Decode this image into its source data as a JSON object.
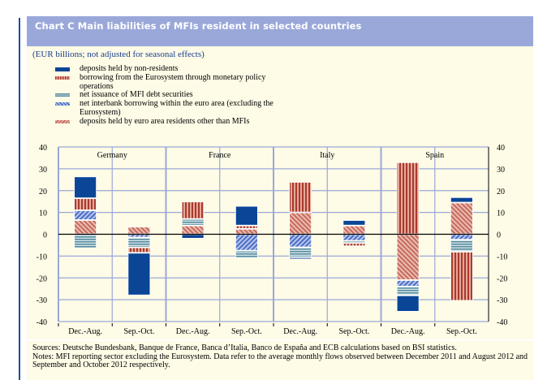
{
  "title": "Chart C Main liabilities of MFIs resident in selected countries",
  "subtitle": "(EUR billions; not adjusted for seasonal effects)",
  "legend": [
    {
      "key": "nonres",
      "label": "deposits held by non-residents",
      "color": "#0a4596"
    },
    {
      "key": "eurosys",
      "label": "borrowing from the Eurosystem through monetary policy operations",
      "color": "#a83a2e"
    },
    {
      "key": "debt",
      "label": "net issuance of MFI debt securities",
      "color": "#5a8ea0"
    },
    {
      "key": "interbank",
      "label": "net interbank borrowing within the euro area (excluding the Eurosystem)",
      "color": "#4b6dc4"
    },
    {
      "key": "ea",
      "label": "deposits held by euro area residents other than MFIs",
      "color": "#c46a5e"
    }
  ],
  "footer": {
    "sources": "Sources: Deutsche Bundesbank, Banque de France, Banca d’Italia, Banco de España and ECB calculations based on BSI statistics.",
    "notes": "Notes: MFI reporting sector excluding the Eurosystem. Data refer to the average monthly flows observed between December 2011 and August 2012 and September and October 2012 respectively."
  },
  "chart_data": {
    "type": "bar",
    "stacked": true,
    "title": "Chart C Main liabilities of MFIs resident in selected countries",
    "ylabel": "EUR billions",
    "ylim": [
      -40,
      40
    ],
    "yticks": [
      40,
      30,
      20,
      10,
      0,
      -10,
      -20,
      -30,
      -40
    ],
    "grid": true,
    "legend_position": "top-left",
    "groups": [
      "Germany",
      "France",
      "Italy",
      "Spain"
    ],
    "categories": [
      "Dec.-Aug.",
      "Sep.-Oct.",
      "Dec.-Aug.",
      "Sep.-Oct.",
      "Dec.-Aug.",
      "Sep.-Oct.",
      "Dec.-Aug.",
      "Sep.-Oct."
    ],
    "series": [
      {
        "key": "ea",
        "name": "deposits held by euro area residents other than MFIs",
        "values": [
          6.5,
          3.5,
          4.0,
          2.5,
          10.0,
          4.0,
          -21.0,
          14.5
        ]
      },
      {
        "key": "interbank",
        "name": "net interbank borrowing within the euro area (excluding the Eurosystem)",
        "values": [
          4.5,
          -1.5,
          0.0,
          -7.5,
          -6.0,
          -3.0,
          -3.0,
          -2.5
        ]
      },
      {
        "key": "debt",
        "name": "net issuance of MFI debt securities",
        "values": [
          -6.5,
          -4.5,
          3.0,
          -3.5,
          -4.5,
          -1.0,
          -4.0,
          -5.5
        ]
      },
      {
        "key": "eurosys",
        "name": "borrowing from the Eurosystem through monetary policy operations",
        "values": [
          5.5,
          -2.5,
          8.0,
          1.5,
          14.0,
          -1.5,
          33.0,
          -22.5
        ]
      },
      {
        "key": "nonres",
        "name": "deposits held by non-residents",
        "values": [
          10.0,
          -19.5,
          -2.0,
          9.0,
          -1.0,
          2.5,
          -7.5,
          2.5
        ]
      }
    ],
    "stack_order": {
      "positive": [
        [
          "ea",
          "interbank",
          "eurosys",
          "nonres"
        ],
        [
          "ea"
        ],
        [
          "ea",
          "debt",
          "eurosys"
        ],
        [
          "ea",
          "eurosys",
          "nonres"
        ],
        [
          "ea",
          "eurosys"
        ],
        [
          "ea",
          "nonres"
        ],
        [
          "eurosys"
        ],
        [
          "ea",
          "nonres"
        ]
      ],
      "negative": [
        [
          "debt"
        ],
        [
          "interbank",
          "debt",
          "eurosys",
          "nonres"
        ],
        [
          "nonres"
        ],
        [
          "interbank",
          "debt"
        ],
        [
          "interbank",
          "debt",
          "nonres"
        ],
        [
          "interbank",
          "debt",
          "eurosys"
        ],
        [
          "ea",
          "interbank",
          "debt",
          "nonres"
        ],
        [
          "interbank",
          "debt",
          "eurosys"
        ]
      ]
    }
  }
}
